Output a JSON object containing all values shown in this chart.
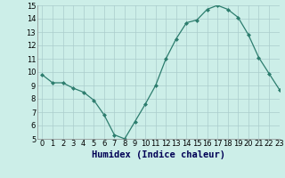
{
  "x": [
    0,
    1,
    2,
    3,
    4,
    5,
    6,
    7,
    8,
    9,
    10,
    11,
    12,
    13,
    14,
    15,
    16,
    17,
    18,
    19,
    20,
    21,
    22,
    23
  ],
  "y": [
    9.8,
    9.2,
    9.2,
    8.8,
    8.5,
    7.9,
    6.8,
    5.3,
    5.0,
    6.3,
    7.6,
    9.0,
    11.0,
    12.5,
    13.7,
    13.9,
    14.7,
    15.0,
    14.7,
    14.1,
    12.8,
    11.1,
    9.9,
    8.7
  ],
  "xlabel": "Humidex (Indice chaleur)",
  "ylim": [
    5,
    15
  ],
  "xlim": [
    -0.5,
    23
  ],
  "yticks": [
    5,
    6,
    7,
    8,
    9,
    10,
    11,
    12,
    13,
    14,
    15
  ],
  "xticks": [
    0,
    1,
    2,
    3,
    4,
    5,
    6,
    7,
    8,
    9,
    10,
    11,
    12,
    13,
    14,
    15,
    16,
    17,
    18,
    19,
    20,
    21,
    22,
    23
  ],
  "line_color": "#2d7d6e",
  "marker": "D",
  "marker_size": 2.0,
  "bg_color": "#cceee8",
  "grid_color": "#aacccc",
  "xlabel_fontsize": 7.5,
  "tick_fontsize": 6.0
}
